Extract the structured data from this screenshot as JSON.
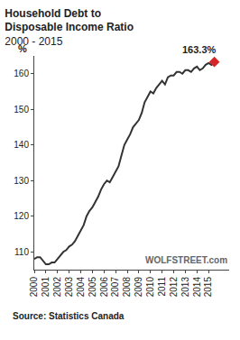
{
  "chart_data": {
    "type": "line",
    "title": "Household Debt to Disposable Income Ratio",
    "subtitle": "2000 - 2015",
    "y_label": "%",
    "watermark": "WOLFSTREET.com",
    "source": "Source: Statistics Canada",
    "color": "#333333",
    "grid": false,
    "categories": [
      "2000",
      null,
      null,
      null,
      "2001",
      null,
      null,
      null,
      "2002",
      null,
      null,
      null,
      "2003",
      null,
      null,
      null,
      "2004",
      null,
      null,
      null,
      "2005",
      null,
      null,
      null,
      "2006",
      null,
      null,
      null,
      "2007",
      null,
      null,
      null,
      "2008",
      null,
      null,
      null,
      "2009",
      null,
      null,
      null,
      "2010",
      null,
      null,
      null,
      "2011",
      null,
      null,
      null,
      "2012",
      null,
      null,
      null,
      "2013",
      null,
      null,
      null,
      "2014",
      null,
      null,
      null,
      "2015",
      null,
      null
    ],
    "values": [
      108,
      108.5,
      108.5,
      107.5,
      106.5,
      106.5,
      107,
      107,
      108,
      109,
      110,
      110.5,
      111.5,
      112,
      113,
      114.5,
      116,
      117.5,
      120,
      121.5,
      122.5,
      124,
      125.5,
      127.5,
      129,
      130,
      129.5,
      131,
      132.5,
      134,
      137,
      140,
      141.5,
      143,
      145,
      146,
      147,
      149,
      152,
      153.5,
      155,
      154.5,
      156,
      157,
      158,
      157,
      159,
      159.5,
      159.5,
      160.5,
      160.5,
      160,
      161,
      161,
      160.5,
      161.5,
      162,
      161,
      161.5,
      162.5,
      163,
      162.5,
      163.3
    ],
    "ylim": [
      105,
      165
    ],
    "yticks": [
      110,
      120,
      130,
      140,
      150,
      160
    ],
    "annotations": [
      {
        "text": "163.3%",
        "index": 62,
        "value": 163.3,
        "color": "#d62728",
        "marker": "diamond"
      }
    ]
  }
}
